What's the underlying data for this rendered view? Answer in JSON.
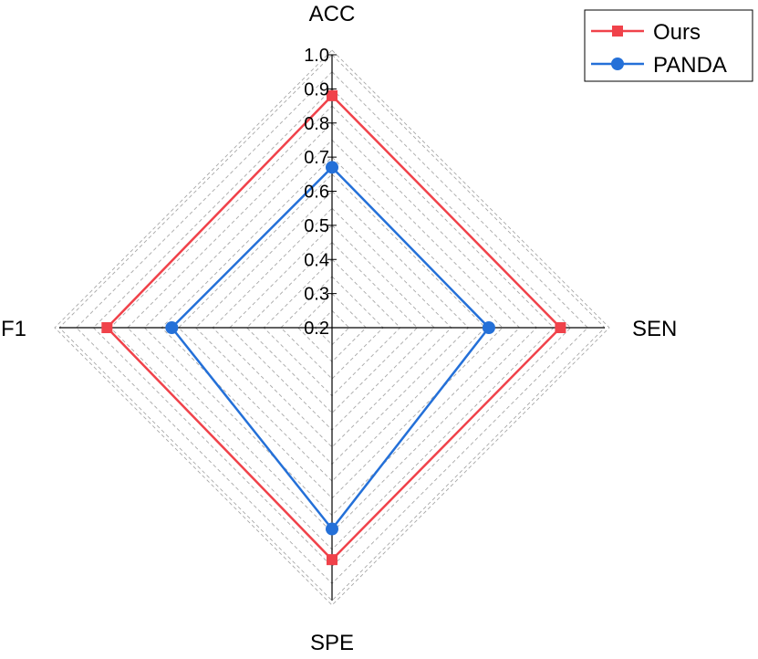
{
  "chart_data": {
    "type": "radar",
    "axes": [
      "ACC",
      "SEN",
      "SPE",
      "F1"
    ],
    "rmin": 0.2,
    "rmax": 1.0,
    "ticks": [
      "1.0",
      "0.9",
      "0.8",
      "0.7",
      "0.6",
      "0.5",
      "0.4",
      "0.3",
      "0.2"
    ],
    "tick_values": [
      1.0,
      0.9,
      0.8,
      0.7,
      0.6,
      0.5,
      0.4,
      0.3,
      0.2
    ],
    "grid": true,
    "legend_position": "top-right",
    "series": [
      {
        "name": "Ours",
        "color": "#f0424a",
        "marker": "square",
        "values": [
          0.88,
          0.87,
          0.88,
          0.86
        ]
      },
      {
        "name": "PANDA",
        "color": "#2470d8",
        "marker": "circle",
        "values": [
          0.67,
          0.66,
          0.79,
          0.67
        ]
      }
    ]
  }
}
